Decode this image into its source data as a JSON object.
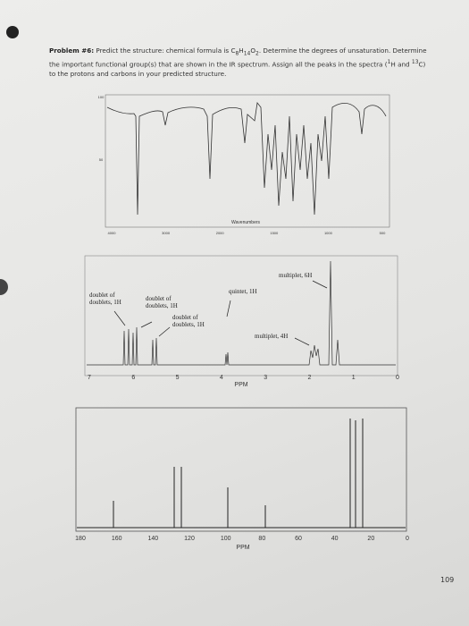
{
  "problem": [
    "Problem #6:",
    " Predict the structure: chemical formula is C",
    "8",
    "H",
    "14",
    "O",
    "2",
    ". Determine the degrees of unsaturation. Determine the important functional group(s) that are shown in the IR spectrum. Assign all the peaks in the spectra (",
    "1",
    "H and ",
    "13",
    "C) to the protons and carbons in your predicted structure."
  ],
  "ir": {
    "y_ticks": [
      "100",
      "50"
    ],
    "x_ticks": [
      "4000",
      "3000",
      "2000",
      "1500",
      "1000",
      "500"
    ],
    "x_label": "Wavenumbers"
  },
  "h_nmr": {
    "annotations": [
      "doublet of doublets, 1H",
      "doublet of doublets, 1H",
      "doublet of doublets, 1H",
      "quintet, 1H",
      "multiplet, 6H",
      "multiplet, 4H"
    ],
    "x_ticks": [
      "7",
      "6",
      "5",
      "4",
      "3",
      "2",
      "1",
      "0"
    ],
    "x_label": "PPM"
  },
  "c_nmr": {
    "x_ticks": [
      "180",
      "160",
      "140",
      "120",
      "100",
      "80",
      "60",
      "40",
      "20",
      "0"
    ],
    "x_label": "PPM"
  },
  "page_number": "109"
}
